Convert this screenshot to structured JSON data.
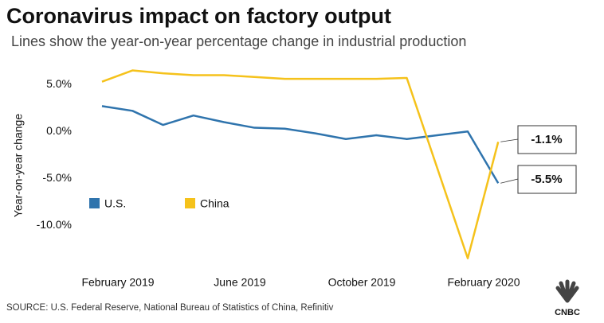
{
  "chart_data": {
    "type": "line",
    "title": "Coronavirus impact on factory output",
    "subtitle": "Lines show the year-on-year percentage change in industrial production",
    "y_label": "Year-on-year change",
    "source": "SOURCE: U.S. Federal Reserve, National Bureau of Statistics of China, Refinitiv",
    "logo": "CNBC",
    "categories": [
      "February 2019",
      null,
      null,
      null,
      "June 2019",
      null,
      null,
      null,
      "October 2019",
      null,
      null,
      null,
      "February 2020",
      null
    ],
    "series": [
      {
        "name": "U.S.",
        "color": "#2f74ad",
        "values": [
          2.7,
          2.2,
          0.7,
          1.7,
          1.0,
          0.4,
          0.3,
          -0.2,
          -0.8,
          -0.4,
          -0.8,
          -0.4,
          0.0,
          -5.5
        ],
        "value_labels": [
          null,
          null,
          null,
          null,
          null,
          null,
          null,
          null,
          null,
          null,
          null,
          null,
          null,
          "-5.5%"
        ]
      },
      {
        "name": "China",
        "color": "#f5c21b",
        "values": [
          5.3,
          6.5,
          6.2,
          6.0,
          6.0,
          5.8,
          5.6,
          5.6,
          5.6,
          5.6,
          5.7,
          null,
          -13.5,
          -1.1
        ],
        "value_labels": [
          null,
          null,
          null,
          null,
          null,
          null,
          null,
          null,
          null,
          null,
          null,
          null,
          null,
          "-1.1%"
        ]
      }
    ],
    "ylim": [
      -14.8,
      6.8
    ],
    "yticks": [
      {
        "value": 5,
        "label": "5.0%"
      },
      {
        "value": 0,
        "label": "0.0%"
      },
      {
        "value": -5,
        "label": "-5.0%"
      },
      {
        "value": -10,
        "label": "-10.0%"
      }
    ],
    "grid": false,
    "connect_gaps": true,
    "legend": "lower left"
  }
}
